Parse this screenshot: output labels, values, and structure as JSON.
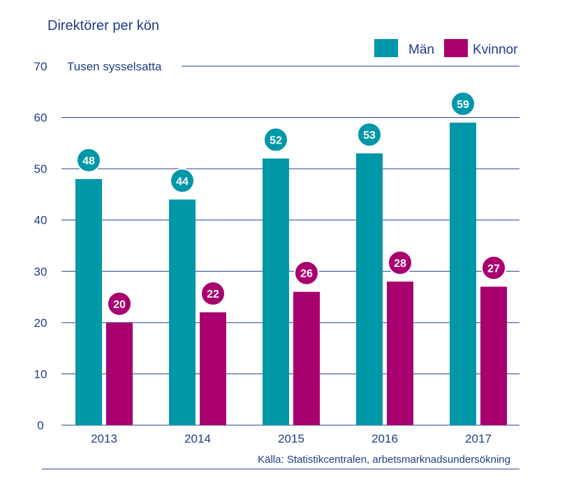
{
  "chart_data": {
    "type": "bar",
    "title": "Direktörer per kön",
    "ylabel": "Tusen sysselsatta",
    "categories": [
      "2013",
      "2014",
      "2015",
      "2016",
      "2017"
    ],
    "series": [
      {
        "name": "Män",
        "color": "#0097a9",
        "values": [
          48,
          44,
          52,
          53,
          59
        ]
      },
      {
        "name": "Kvinnor",
        "color": "#a8006f",
        "values": [
          20,
          22,
          26,
          28,
          27
        ]
      }
    ],
    "ylim": [
      0,
      70
    ],
    "yticks": [
      "0",
      "10",
      "20",
      "30",
      "40",
      "50",
      "60",
      "70"
    ],
    "grid": true,
    "legend_position": "top-right",
    "source": "Källa: Statistikcentralen, arbetsmarknadsundersökning"
  }
}
